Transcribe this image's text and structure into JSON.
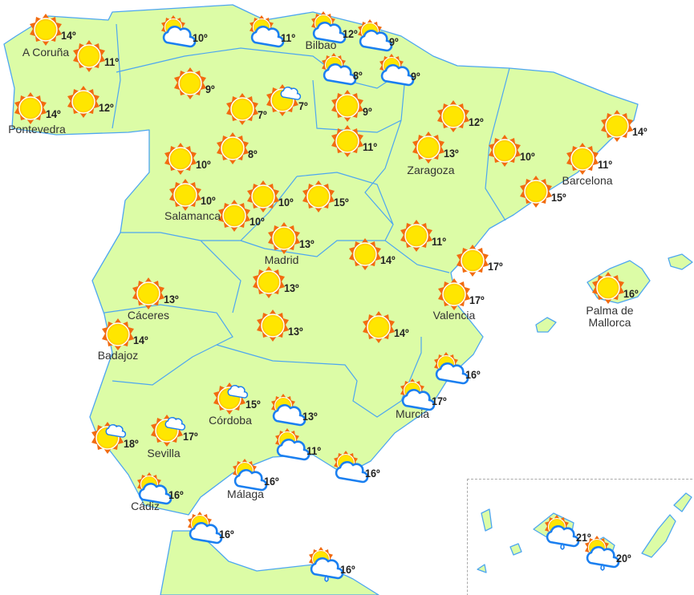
{
  "colors": {
    "land": "#dcfca6",
    "border": "#4da6f0",
    "sun": "#ffe600",
    "sun_rays": "#f26b0f",
    "cloud_stroke": "#1a7ff0"
  },
  "markers": [
    {
      "icon": "sun",
      "temp": "14º"
    },
    {
      "icon": "sun",
      "temp": "11º"
    },
    {
      "icon": "sun",
      "temp": "14º"
    },
    {
      "icon": "sun",
      "temp": "12º"
    },
    {
      "icon": "sun",
      "temp": "9º"
    },
    {
      "icon": "sun",
      "temp": "7º"
    },
    {
      "icon": "sun-small-cloud",
      "temp": "7º"
    },
    {
      "icon": "sun",
      "temp": "9º"
    },
    {
      "icon": "sun",
      "temp": "11º"
    },
    {
      "icon": "sun",
      "temp": "8º"
    },
    {
      "icon": "sun",
      "temp": "10º"
    },
    {
      "icon": "sun",
      "temp": "10º"
    },
    {
      "icon": "sun",
      "temp": "10º"
    },
    {
      "icon": "sun",
      "temp": "10º"
    },
    {
      "icon": "sun",
      "temp": "15º"
    },
    {
      "icon": "sun",
      "temp": "13º"
    },
    {
      "icon": "sun",
      "temp": "12º"
    },
    {
      "icon": "sun",
      "temp": "13º"
    },
    {
      "icon": "sun",
      "temp": "10º"
    },
    {
      "icon": "sun",
      "temp": "14º"
    },
    {
      "icon": "sun",
      "temp": "11º"
    },
    {
      "icon": "sun",
      "temp": "15º"
    },
    {
      "icon": "sun",
      "temp": "11º"
    },
    {
      "icon": "sun",
      "temp": "14º"
    },
    {
      "icon": "sun",
      "temp": "17º"
    },
    {
      "icon": "sun",
      "temp": "17º"
    },
    {
      "icon": "sun",
      "temp": "16º"
    },
    {
      "icon": "sun",
      "temp": "13º"
    },
    {
      "icon": "sun",
      "temp": "13º"
    },
    {
      "icon": "sun",
      "temp": "14º"
    },
    {
      "icon": "sun",
      "temp": "13º"
    },
    {
      "icon": "sun",
      "temp": "14º"
    },
    {
      "icon": "sun-small-cloud",
      "temp": "18º"
    },
    {
      "icon": "sun-small-cloud",
      "temp": "17º"
    },
    {
      "icon": "sun-small-cloud",
      "temp": "15º"
    },
    {
      "icon": "cloud-sun",
      "temp": "10º"
    },
    {
      "icon": "cloud-sun",
      "temp": "11º"
    },
    {
      "icon": "cloud-sun",
      "temp": "12º"
    },
    {
      "icon": "cloud-sun",
      "temp": "9º"
    },
    {
      "icon": "cloud-sun",
      "temp": "8º"
    },
    {
      "icon": "cloud-sun",
      "temp": "9º"
    },
    {
      "icon": "cloud-sun",
      "temp": "16º"
    },
    {
      "icon": "cloud-sun",
      "temp": "17º"
    },
    {
      "icon": "cloud-sun",
      "temp": "13º"
    },
    {
      "icon": "cloud-sun",
      "temp": "11º"
    },
    {
      "icon": "cloud-sun",
      "temp": "16º"
    },
    {
      "icon": "cloud-sun",
      "temp": "16º"
    },
    {
      "icon": "cloud-sun",
      "temp": "16º"
    },
    {
      "icon": "cloud-sun",
      "temp": "16º"
    },
    {
      "icon": "cloud-sun-rain",
      "temp": "16º"
    },
    {
      "icon": "cloud-sun-rain",
      "temp": "21º"
    },
    {
      "icon": "cloud-sun-rain",
      "temp": "20º"
    }
  ],
  "cities": [
    "A Coruña",
    "Pontevedra",
    "Bilbao",
    "Salamanca",
    "Madrid",
    "Zaragoza",
    "Barcelona",
    "Cáceres",
    "Badajoz",
    "Valencia",
    "Palma de\nMallorca",
    "Córdoba",
    "Sevilla",
    "Murcia",
    "Málaga",
    "Cádiz"
  ]
}
